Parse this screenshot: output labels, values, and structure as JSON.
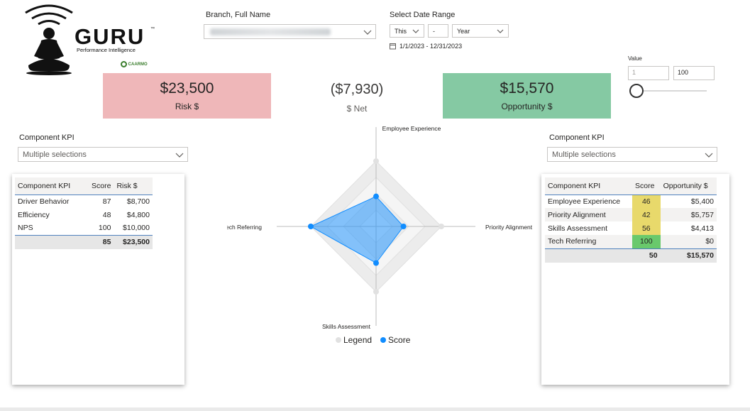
{
  "logo": {
    "brand": "GURU",
    "tagline": "Performance Intelligence",
    "tm": "™",
    "partner": "CAARMO"
  },
  "filters": {
    "branch": {
      "title": "Branch, Full Name",
      "value": ""
    },
    "date": {
      "title": "Select Date Range",
      "relative": "This",
      "count": "-",
      "unit": "Year",
      "range": "1/1/2023 - 12/31/2023"
    }
  },
  "cards": {
    "risk": {
      "value": "$23,500",
      "label": "Risk $",
      "color": "#efb7b9"
    },
    "net": {
      "value": "($7,930)",
      "label": "$ Net"
    },
    "opportunity": {
      "value": "$15,570",
      "label": "Opportunity $",
      "color": "#85c9a3"
    }
  },
  "value_slicer": {
    "title": "Value",
    "min": "1",
    "max": "100",
    "level": 1
  },
  "left_slicer": {
    "title": "Component KPI",
    "value": "Multiple selections"
  },
  "right_slicer": {
    "title": "Component KPI",
    "value": "Multiple selections"
  },
  "risk_table": {
    "headers": [
      "Component KPI",
      "Score",
      "Risk $"
    ],
    "rows": [
      [
        "Driver Behavior",
        "87",
        "$8,700"
      ],
      [
        "Efficiency",
        "48",
        "$4,800"
      ],
      [
        "NPS",
        "100",
        "$10,000"
      ]
    ],
    "total": [
      "",
      "85",
      "$23,500"
    ]
  },
  "opp_table": {
    "headers": [
      "Component KPI",
      "Score",
      "Opportunity $"
    ],
    "rows": [
      [
        "Employee Experience",
        "46",
        "$5,400"
      ],
      [
        "Priority Alignment",
        "42",
        "$5,757"
      ],
      [
        "Skills Assessment",
        "56",
        "$4,413"
      ],
      [
        "Tech Referring",
        "100",
        "$0"
      ]
    ],
    "total": [
      "",
      "50",
      "$15,570"
    ],
    "score_colors": [
      "#e8d96b",
      "#e8d96b",
      "#e8d96b",
      "#69c96c"
    ]
  },
  "chart_data": {
    "type": "radar",
    "axes": [
      "Employee Experience",
      "Priority Alignment",
      "Skills Assessment",
      "Tech Referring"
    ],
    "series": [
      {
        "name": "Legend",
        "values": [
          100,
          100,
          100,
          100
        ],
        "color": "#e1e1e1"
      },
      {
        "name": "Score",
        "values": [
          46,
          42,
          56,
          100
        ],
        "color": "#118dff"
      }
    ],
    "range": [
      0,
      100
    ],
    "legend_position": "bottom"
  }
}
